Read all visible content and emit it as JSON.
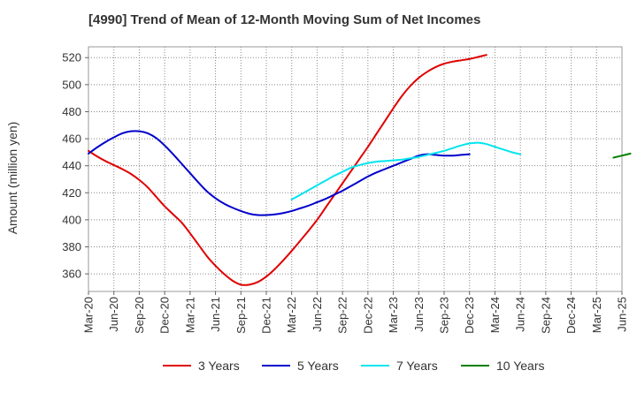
{
  "chart_data": {
    "type": "line",
    "title": "[4990]  Trend of Mean of 12-Month Moving Sum of Net Incomes",
    "xlabel": "",
    "ylabel": "Amount (million yen)",
    "x_ticks": [
      "Mar-20",
      "Jun-20",
      "Sep-20",
      "Dec-20",
      "Mar-21",
      "Jun-21",
      "Sep-21",
      "Dec-21",
      "Mar-22",
      "Jun-22",
      "Sep-22",
      "Dec-22",
      "Mar-23",
      "Jun-23",
      "Sep-23",
      "Dec-23",
      "Mar-24",
      "Jun-24",
      "Sep-24",
      "Dec-24",
      "Mar-25",
      "Jun-25"
    ],
    "y_ticks": [
      360,
      380,
      400,
      420,
      440,
      460,
      480,
      500,
      520
    ],
    "ylim": [
      347,
      528
    ],
    "grid": true,
    "legend_position": "bottom",
    "series": [
      {
        "name": "3 Years",
        "color": "#e00000",
        "start_index": 0,
        "values": [
          451,
          447,
          443.5,
          440.5,
          437.5,
          434,
          429.5,
          424,
          417,
          410,
          404,
          398,
          390,
          381.5,
          373,
          366,
          360,
          355,
          352,
          352,
          354,
          358,
          363.5,
          370,
          377,
          384.5,
          392,
          400,
          409,
          418,
          427,
          436,
          445,
          454,
          463.5,
          473,
          482.5,
          491.5,
          499,
          505,
          509.5,
          513,
          515.5,
          517,
          518,
          519,
          520.5,
          522
        ]
      },
      {
        "name": "5 Years",
        "color": "#0000cc",
        "start_index": 0,
        "values": [
          449,
          453.5,
          457.5,
          461,
          464,
          465.5,
          465.5,
          464,
          460.5,
          455,
          448.5,
          441.5,
          434.5,
          427.5,
          421,
          416,
          412,
          409,
          406.5,
          404.5,
          403.5,
          403.5,
          404,
          405,
          406.5,
          408.5,
          410.5,
          413,
          415.5,
          418.5,
          421.5,
          425,
          428.5,
          432,
          435,
          437.5,
          440,
          442.5,
          445,
          447.5,
          448.5,
          448,
          447.5,
          447.5,
          448,
          448.5
        ]
      },
      {
        "name": "7 Years",
        "color": "#00e5ee",
        "start_index": 24,
        "values": [
          415,
          418.5,
          422,
          425.5,
          429,
          432.5,
          435.5,
          438.5,
          440.5,
          442,
          443,
          443.5,
          444,
          444.5,
          445.5,
          446.5,
          448,
          449.5,
          451,
          453,
          455,
          456.5,
          457,
          456,
          454,
          452,
          450,
          448.5
        ]
      },
      {
        "name": "10 Years",
        "color": "#008000",
        "start_index": 62,
        "values": [
          446,
          447.5,
          449
        ]
      }
    ]
  }
}
